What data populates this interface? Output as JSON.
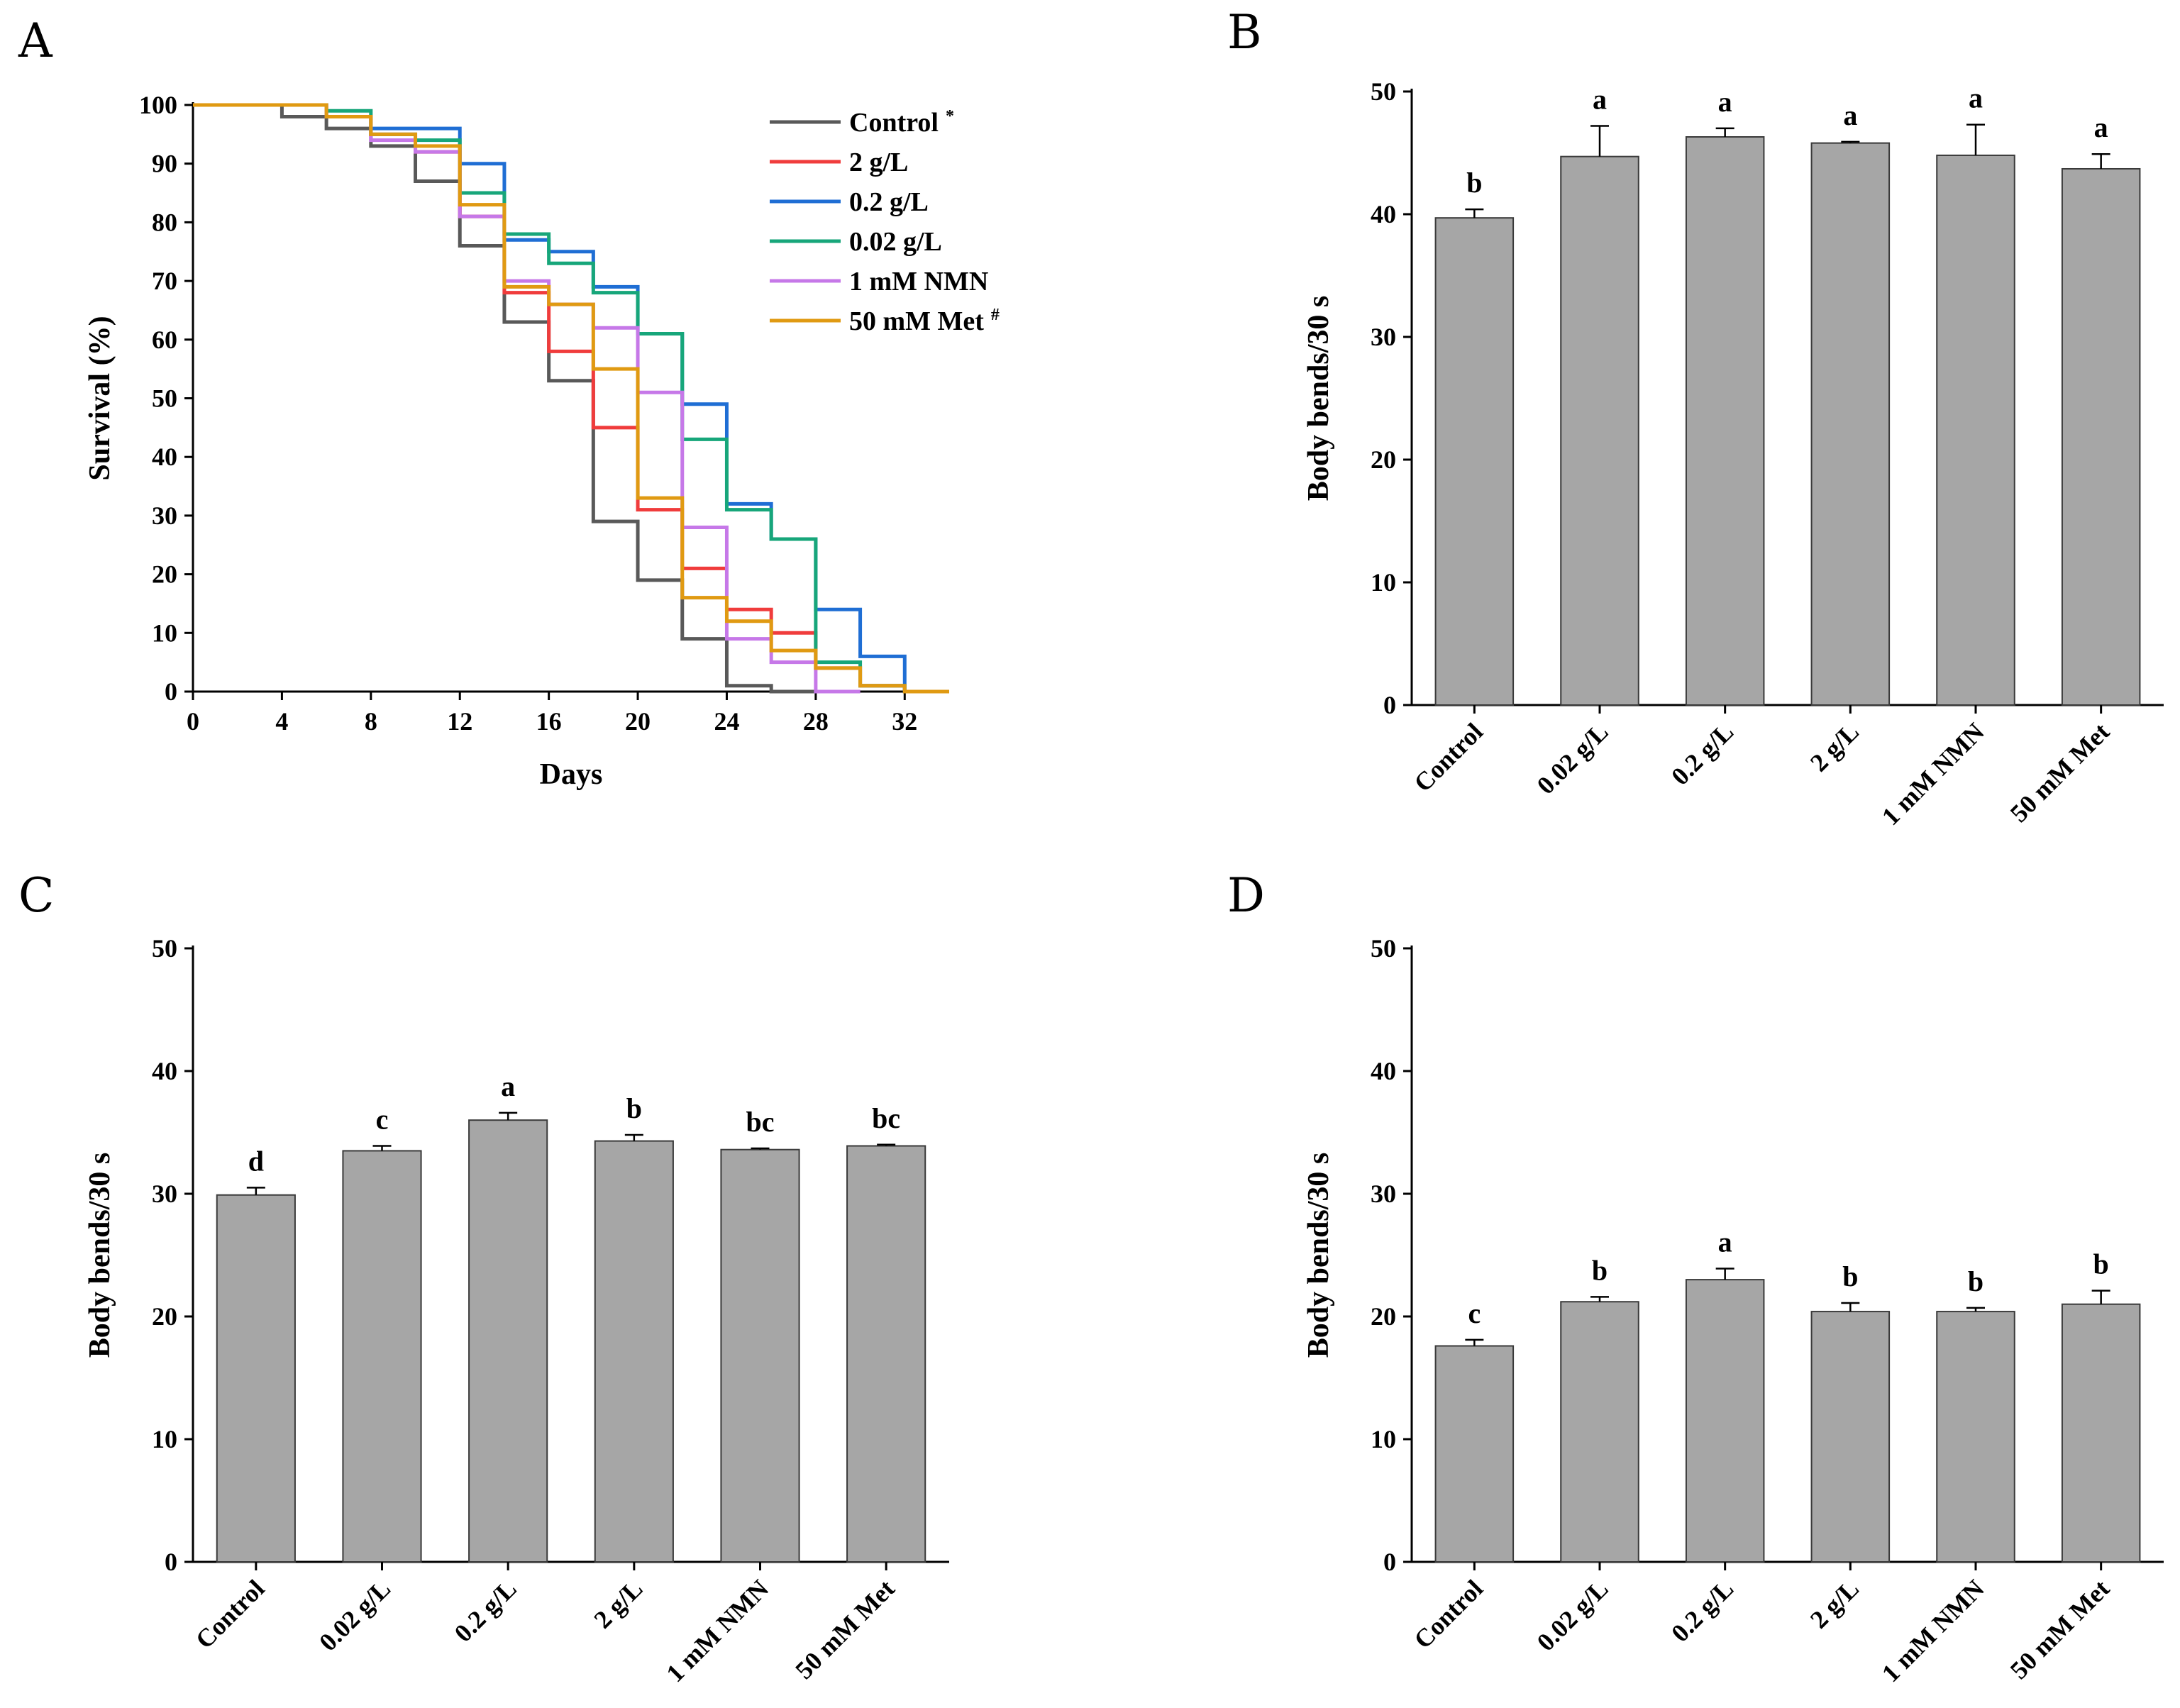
{
  "chart_data": [
    {
      "panel": "A",
      "type": "line",
      "step": true,
      "xlabel": "Days",
      "ylabel": "Survival (%)",
      "xlim": [
        0,
        34
      ],
      "ylim": [
        0,
        100
      ],
      "xticks": [
        0,
        4,
        8,
        12,
        16,
        20,
        24,
        28,
        32
      ],
      "yticks": [
        0,
        10,
        20,
        30,
        40,
        50,
        60,
        70,
        80,
        90,
        100
      ],
      "legend_position": "top-right",
      "series": [
        {
          "name": "Control",
          "marker": "*",
          "color": "#595959",
          "x": [
            0,
            4,
            6,
            8,
            10,
            12,
            14,
            16,
            18,
            20,
            22,
            24,
            26,
            28
          ],
          "y": [
            100,
            98,
            96,
            93,
            87,
            76,
            63,
            53,
            29,
            19,
            9,
            1,
            0,
            0
          ]
        },
        {
          "name": "2 g/L",
          "marker": "",
          "color": "#f03c3c",
          "x": [
            0,
            6,
            8,
            10,
            12,
            14,
            16,
            18,
            20,
            22,
            24,
            26,
            28,
            30,
            32
          ],
          "y": [
            100,
            98,
            95,
            92,
            81,
            68,
            58,
            45,
            31,
            21,
            14,
            10,
            4,
            1,
            0
          ]
        },
        {
          "name": "0.2 g/L",
          "marker": "",
          "color": "#1f6ed4",
          "x": [
            0,
            6,
            8,
            10,
            12,
            14,
            16,
            18,
            20,
            22,
            24,
            26,
            28,
            30,
            32,
            34
          ],
          "y": [
            100,
            98,
            96,
            96,
            90,
            77,
            75,
            69,
            61,
            49,
            32,
            26,
            14,
            6,
            0,
            0
          ]
        },
        {
          "name": "0.02 g/L",
          "marker": "",
          "color": "#17a67a",
          "x": [
            0,
            6,
            8,
            10,
            12,
            14,
            16,
            18,
            20,
            22,
            24,
            26,
            28,
            30,
            32
          ],
          "y": [
            100,
            99,
            95,
            94,
            85,
            78,
            73,
            68,
            61,
            43,
            31,
            26,
            5,
            1,
            0
          ]
        },
        {
          "name": "1 mM NMN",
          "marker": "",
          "color": "#c678e8",
          "x": [
            0,
            6,
            8,
            10,
            12,
            14,
            16,
            18,
            20,
            22,
            24,
            26,
            28,
            30
          ],
          "y": [
            100,
            98,
            94,
            92,
            81,
            70,
            66,
            62,
            51,
            28,
            9,
            5,
            0,
            0
          ]
        },
        {
          "name": "50 mM Met",
          "marker": "#",
          "color": "#e09a12",
          "x": [
            0,
            6,
            8,
            10,
            12,
            14,
            16,
            18,
            20,
            22,
            24,
            26,
            28,
            30,
            32,
            34
          ],
          "y": [
            100,
            98,
            95,
            93,
            83,
            69,
            66,
            55,
            33,
            16,
            12,
            7,
            4,
            1,
            0,
            0
          ]
        }
      ]
    },
    {
      "panel": "B",
      "type": "bar",
      "ylabel": "Body bends/30 s",
      "xlabel": "",
      "ylim": [
        0,
        50
      ],
      "yticks": [
        0,
        10,
        20,
        30,
        40,
        50
      ],
      "categories": [
        "Control",
        "0.02 g/L",
        "0.2 g/L",
        "2 g/L",
        "1 mM NMN",
        "50 mM Met"
      ],
      "values": [
        39.7,
        44.7,
        46.3,
        45.8,
        44.8,
        43.7
      ],
      "errors": [
        0.7,
        2.5,
        0.7,
        0.1,
        2.5,
        1.2
      ],
      "significance": [
        "b",
        "a",
        "a",
        "a",
        "a",
        "a"
      ]
    },
    {
      "panel": "C",
      "type": "bar",
      "ylabel": "Body bends/30 s",
      "xlabel": "",
      "ylim": [
        0,
        50
      ],
      "yticks": [
        0,
        10,
        20,
        30,
        40,
        50
      ],
      "categories": [
        "Control",
        "0.02 g/L",
        "0.2 g/L",
        "2 g/L",
        "1 mM NMN",
        "50 mM Met"
      ],
      "values": [
        29.9,
        33.5,
        36.0,
        34.3,
        33.6,
        33.9
      ],
      "errors": [
        0.6,
        0.4,
        0.6,
        0.5,
        0.1,
        0.1
      ],
      "significance": [
        "d",
        "c",
        "a",
        "b",
        "bc",
        "bc"
      ]
    },
    {
      "panel": "D",
      "type": "bar",
      "ylabel": "Body bends/30 s",
      "xlabel": "",
      "ylim": [
        0,
        50
      ],
      "yticks": [
        0,
        10,
        20,
        30,
        40,
        50
      ],
      "categories": [
        "Control",
        "0.02 g/L",
        "0.2 g/L",
        "2 g/L",
        "1 mM NMN",
        "50 mM Met"
      ],
      "values": [
        17.6,
        21.2,
        23.0,
        20.4,
        20.4,
        21.0
      ],
      "errors": [
        0.5,
        0.4,
        0.9,
        0.7,
        0.3,
        1.1
      ],
      "significance": [
        "c",
        "b",
        "a",
        "b",
        "b",
        "b"
      ]
    }
  ]
}
